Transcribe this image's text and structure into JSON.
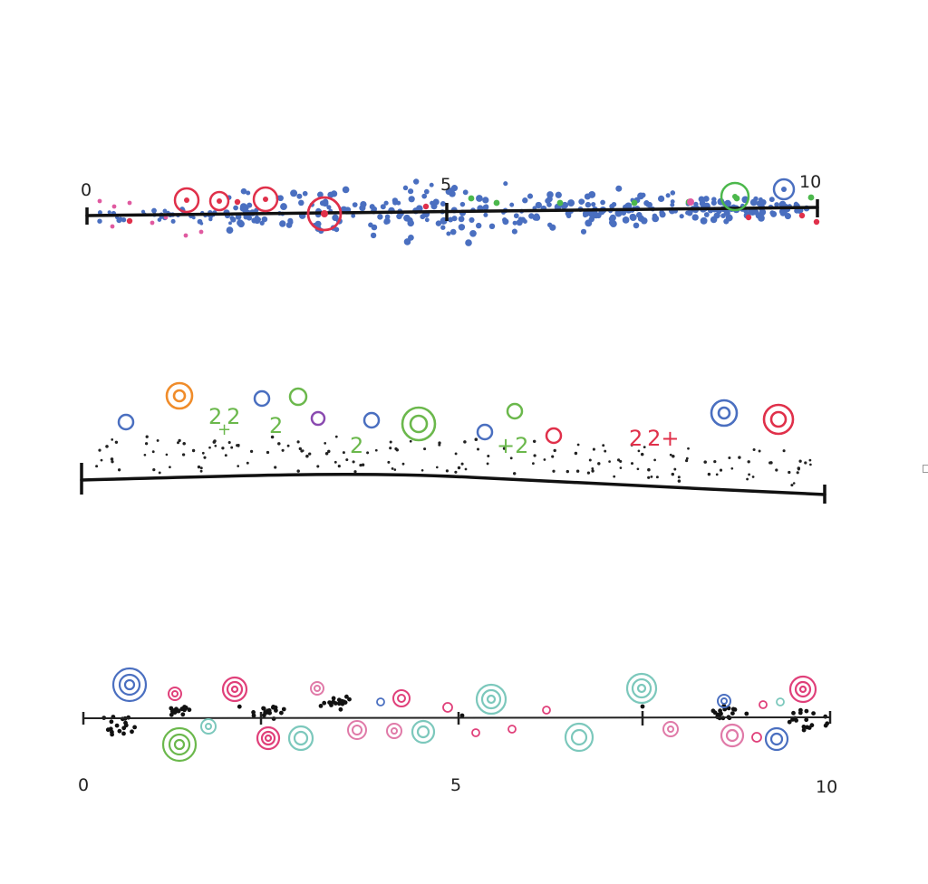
{
  "panels": [
    {
      "id": "top",
      "tick_labels": [
        "0",
        "5",
        "10"
      ],
      "colors": {
        "dense": "#4a6fc0",
        "rare": "#e0304a",
        "green": "#4cb84c",
        "pink": "#e05aa0"
      }
    },
    {
      "id": "middle",
      "tick_labels": [],
      "squiggles": [
        "2 2",
        "+",
        "2",
        "2",
        "+2",
        "2 2+"
      ],
      "colors": {
        "blue": "#4a6fc0",
        "orange": "#f08c2a",
        "green": "#6bb84c",
        "purple": "#8a4ab0",
        "red": "#e0304a",
        "dots": "#222222"
      }
    },
    {
      "id": "bottom",
      "tick_labels": [
        "0",
        "5",
        "10"
      ],
      "colors": {
        "blue": "#4a6fc0",
        "pink": "#e0407a",
        "green": "#6bb84c",
        "teal": "#7cc8bc",
        "rose": "#e07aa8",
        "dots": "#111111"
      }
    }
  ]
}
